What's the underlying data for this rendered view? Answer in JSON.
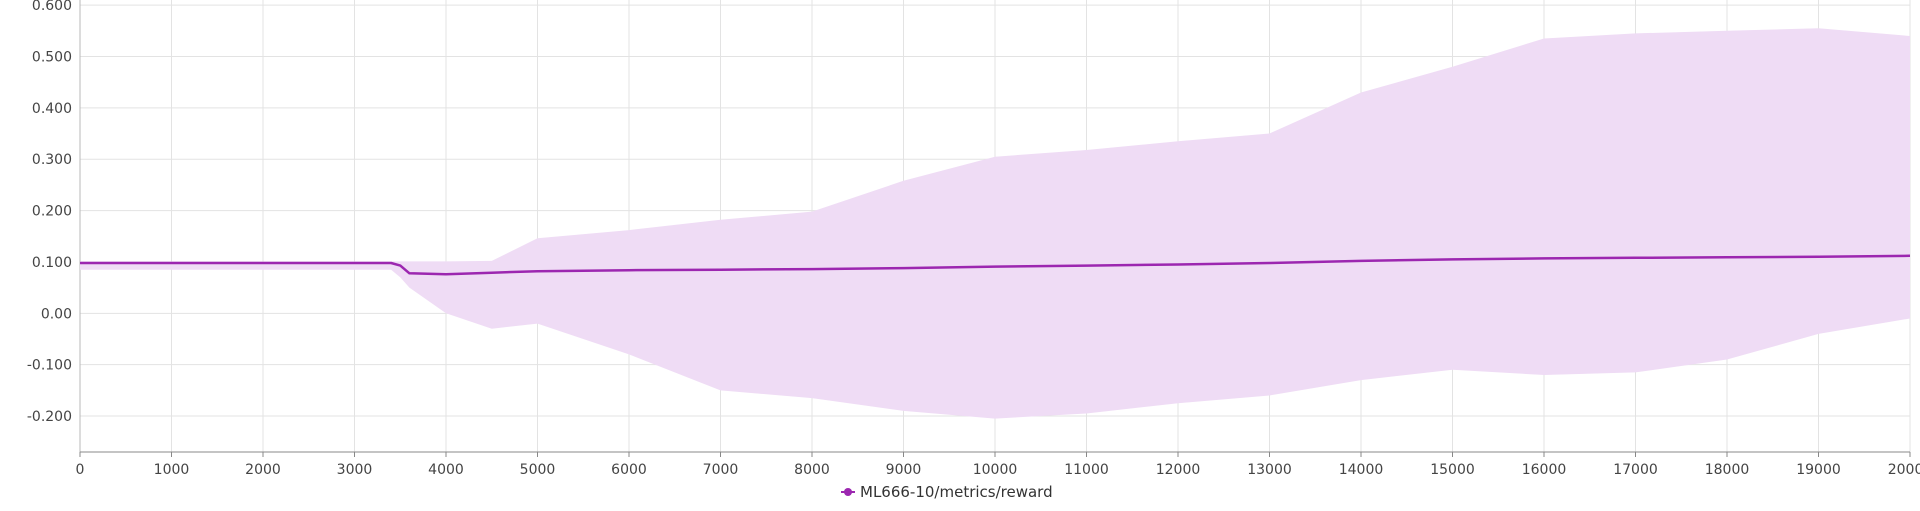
{
  "chart_data": {
    "type": "line",
    "title": "",
    "xlabel": "",
    "ylabel": "",
    "xlim": [
      0,
      20000
    ],
    "ylim": [
      -0.27,
      0.61
    ],
    "grid": true,
    "legend_position": "bottom-center",
    "x_ticks": [
      0,
      1000,
      2000,
      3000,
      4000,
      5000,
      6000,
      7000,
      8000,
      9000,
      10000,
      11000,
      12000,
      13000,
      14000,
      15000,
      16000,
      17000,
      18000,
      19000,
      20000
    ],
    "x_tick_labels": [
      "0",
      "1000",
      "2000",
      "3000",
      "4000",
      "5000",
      "6000",
      "7000",
      "8000",
      "9000",
      "10000",
      "11000",
      "12000",
      "13000",
      "14000",
      "15000",
      "16000",
      "17000",
      "18000",
      "19000",
      "20000"
    ],
    "y_ticks": [
      0.6,
      0.5,
      0.4,
      0.3,
      0.2,
      0.1,
      0.0,
      -0.1,
      -0.2
    ],
    "y_tick_labels": [
      "0.600",
      "0.500",
      "0.400",
      "0.300",
      "0.200",
      "0.100",
      "0.00",
      "-0.100",
      "-0.200"
    ],
    "series": [
      {
        "name": "ML666-10/metrics/reward",
        "color": "#9c27b0",
        "band_color": "#efdcf5",
        "x": [
          0,
          1000,
          2000,
          3000,
          3400,
          3500,
          3600,
          4000,
          4500,
          5000,
          6000,
          7000,
          8000,
          9000,
          10000,
          11000,
          12000,
          13000,
          14000,
          15000,
          16000,
          17000,
          18000,
          19000,
          20000
        ],
        "values": [
          0.098,
          0.098,
          0.098,
          0.098,
          0.098,
          0.093,
          0.078,
          0.076,
          0.079,
          0.082,
          0.084,
          0.085,
          0.086,
          0.088,
          0.091,
          0.093,
          0.095,
          0.098,
          0.102,
          0.105,
          0.107,
          0.108,
          0.109,
          0.11,
          0.112
        ],
        "band_upper": [
          0.101,
          0.101,
          0.101,
          0.101,
          0.101,
          0.101,
          0.101,
          0.101,
          0.102,
          0.146,
          0.162,
          0.182,
          0.198,
          0.258,
          0.305,
          0.318,
          0.335,
          0.35,
          0.43,
          0.48,
          0.535,
          0.545,
          0.55,
          0.555,
          0.54
        ],
        "band_lower": [
          0.085,
          0.085,
          0.085,
          0.085,
          0.085,
          0.07,
          0.05,
          0.0,
          -0.03,
          -0.02,
          -0.08,
          -0.15,
          -0.165,
          -0.19,
          -0.205,
          -0.195,
          -0.175,
          -0.16,
          -0.13,
          -0.11,
          -0.12,
          -0.115,
          -0.09,
          -0.04,
          -0.01
        ]
      }
    ]
  }
}
